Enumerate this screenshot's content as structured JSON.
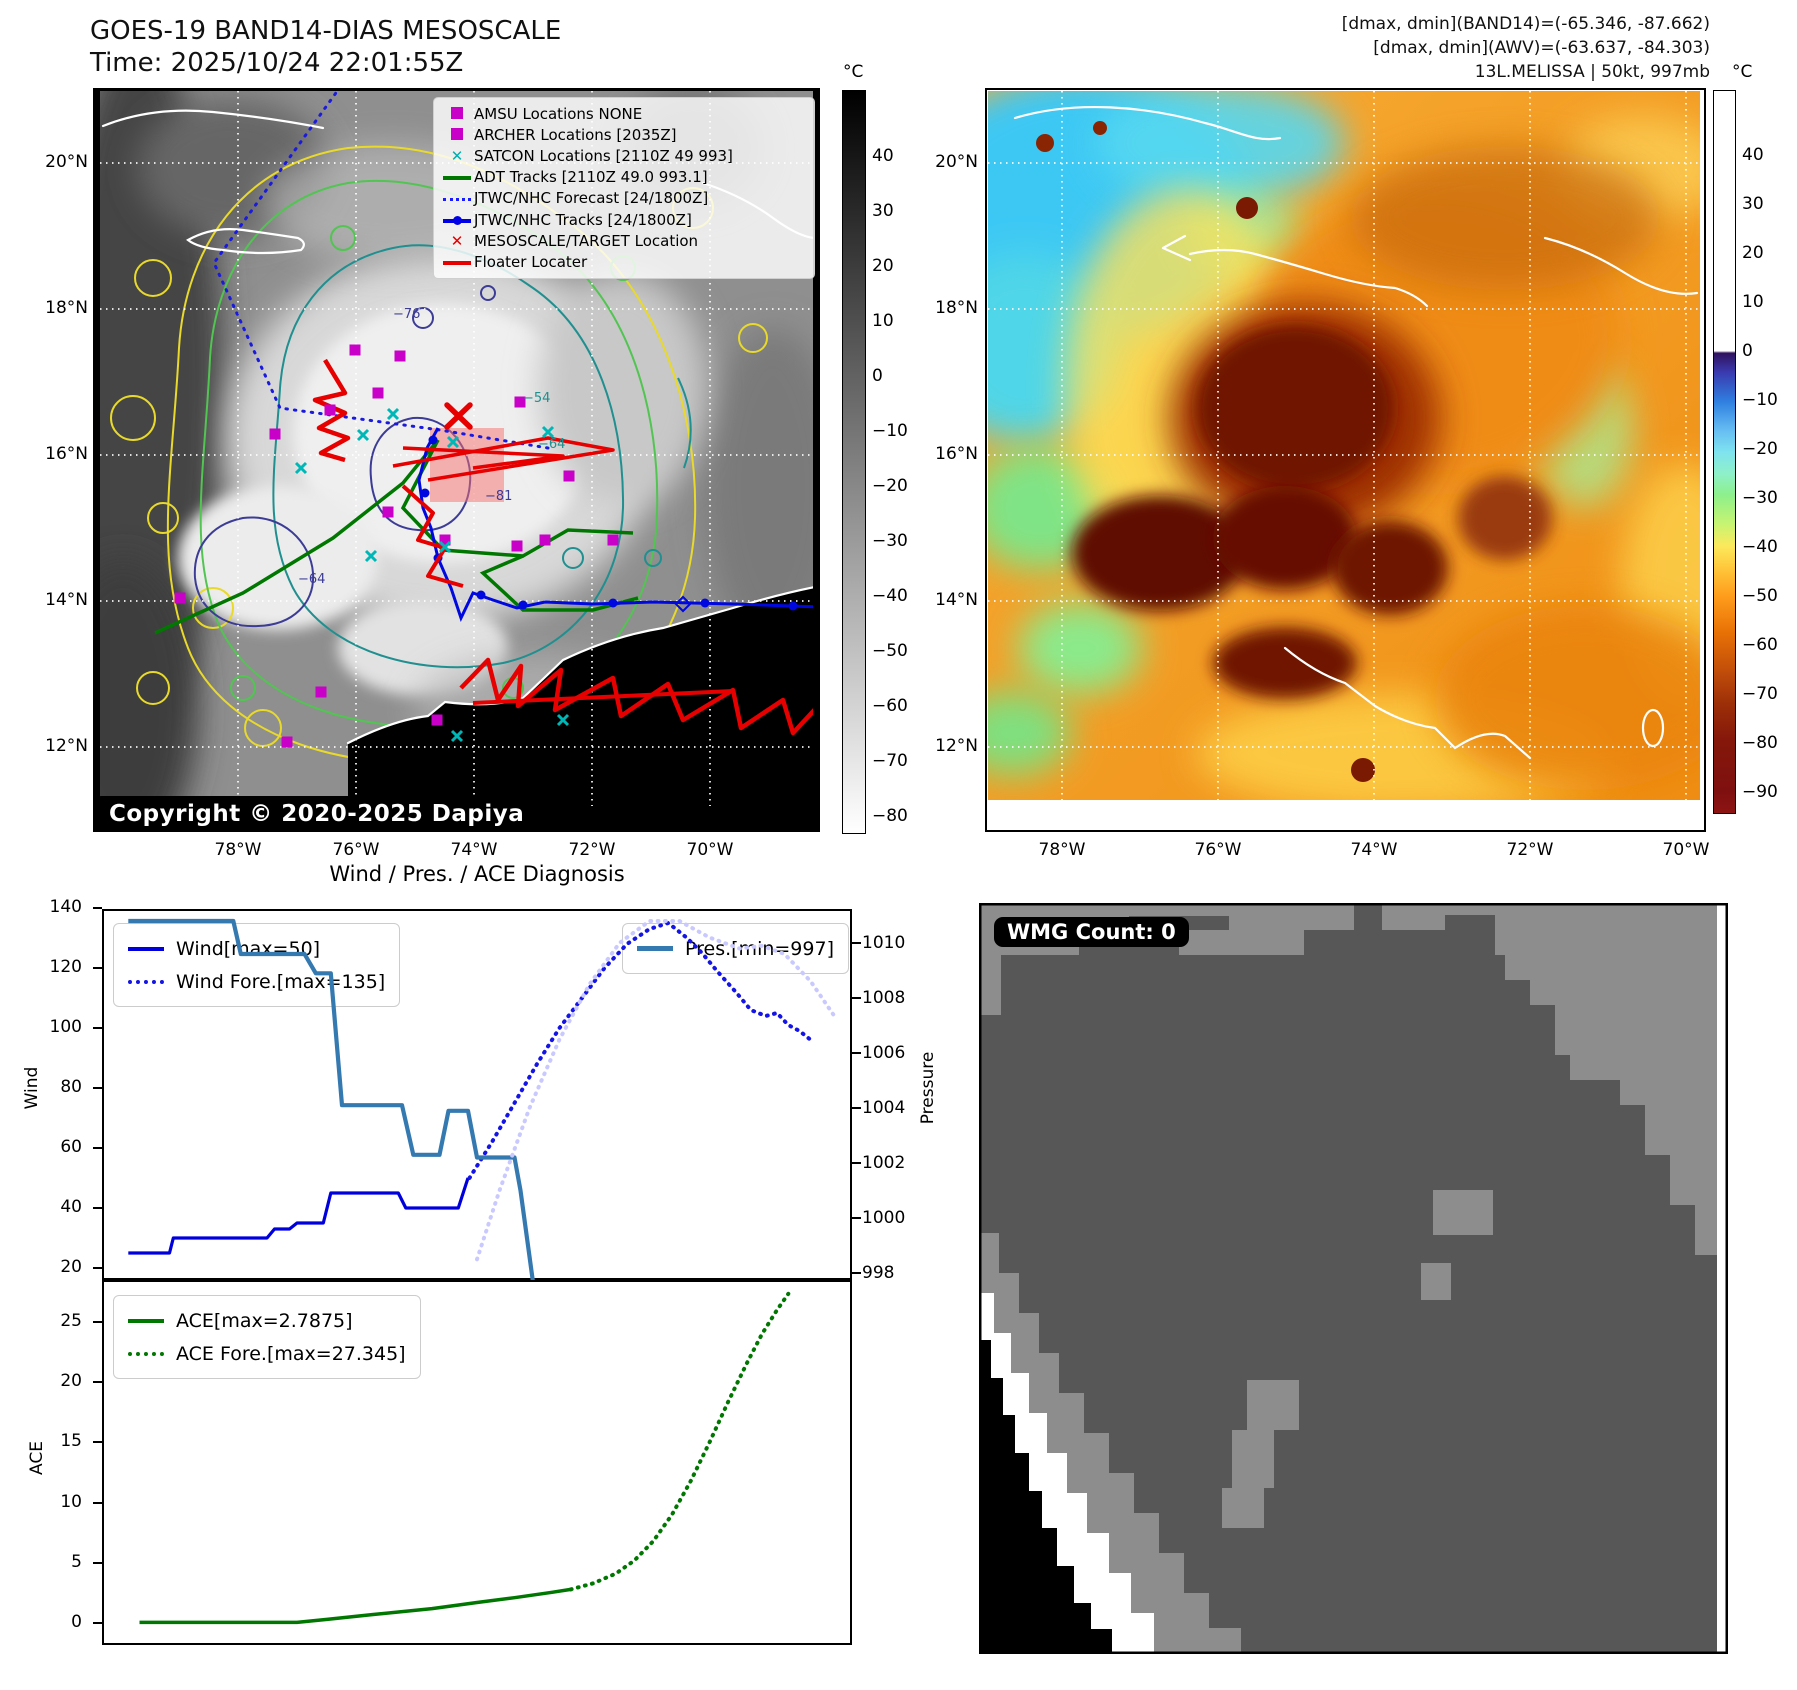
{
  "header": {
    "title_line1": "GOES-19 BAND14-DIAS MESOSCALE",
    "title_line2": "Time: 2025/10/24 22:01:55Z",
    "info_line1": "[dmax, dmin](BAND14)=(-65.346, -87.662)",
    "info_line2": "[dmax, dmin](AWV)=(-63.637, -84.303)",
    "info_line3": "13L.MELISSA | 50kt, 997mb"
  },
  "band14_map": {
    "copyright": "Copyright © 2020-2025 Dapiya",
    "lat_labels": [
      "20°N",
      "18°N",
      "16°N",
      "14°N",
      "12°N"
    ],
    "lon_labels": [
      "78°W",
      "76°W",
      "74°W",
      "72°W",
      "70°W"
    ],
    "colorbar": {
      "unit": "°C",
      "ticks": [
        "40",
        "30",
        "20",
        "10",
        "0",
        "−10",
        "−20",
        "−30",
        "−40",
        "−50",
        "−60",
        "−70",
        "−80"
      ]
    },
    "contour_labels": [
      "−76",
      "−81",
      "−64",
      "−54",
      "−64"
    ],
    "legend_items": [
      {
        "type": "square",
        "color": "#c800c8",
        "label": "AMSU Locations NONE"
      },
      {
        "type": "square",
        "color": "#c800c8",
        "label": "ARCHER Locations [2035Z]"
      },
      {
        "type": "x",
        "color": "#00b0b0",
        "label": "SATCON Locations [2110Z 49 993]"
      },
      {
        "type": "line",
        "color": "#007700",
        "label": "ADT Tracks [2110Z 49.0 993.1]"
      },
      {
        "type": "dotted",
        "color": "#1a1aff",
        "label": "JTWC/NHC Forecast [24/1800Z]"
      },
      {
        "type": "line-marker",
        "color": "#0000e6",
        "label": "JTWC/NHC Tracks [24/1800Z]"
      },
      {
        "type": "x",
        "color": "#e60000",
        "label": "MESOSCALE/TARGET Location"
      },
      {
        "type": "line",
        "color": "#e60000",
        "label": "Floater Locater"
      }
    ]
  },
  "awv_map": {
    "lat_labels": [
      "20°N",
      "18°N",
      "16°N",
      "14°N",
      "12°N"
    ],
    "lon_labels": [
      "78°W",
      "76°W",
      "74°W",
      "72°W",
      "70°W"
    ],
    "colorbar": {
      "unit": "°C",
      "ticks": [
        "40",
        "30",
        "20",
        "10",
        "0",
        "−10",
        "−20",
        "−30",
        "−40",
        "−50",
        "−60",
        "−70",
        "−80",
        "−90"
      ]
    }
  },
  "wmg": {
    "count_label": "WMG Count: 0",
    "colors": {
      "dark": "#575757",
      "light": "#8d8d8d",
      "black": "#000000",
      "white": "#ffffff"
    }
  },
  "chart_data": [
    {
      "type": "line",
      "title": "Wind / Pres. / ACE Diagnosis",
      "left_axis": {
        "label": "Wind",
        "tick_labels": [
          "140",
          "120",
          "100",
          "80",
          "60",
          "40",
          "20"
        ],
        "range": [
          20,
          140
        ]
      },
      "right_axis": {
        "label": "Pressure",
        "tick_labels": [
          "1010",
          "1008",
          "1006",
          "1004",
          "1002",
          "1000",
          "998"
        ],
        "range": [
          997,
          1011
        ]
      },
      "grid": false,
      "series": [
        {
          "name": "Wind[max=50]",
          "axis": "wind",
          "style": "solid",
          "color": "#0000dd",
          "width": 3.2,
          "points": [
            [
              0.035,
              25
            ],
            [
              0.09,
              25
            ],
            [
              0.095,
              30
            ],
            [
              0.22,
              30
            ],
            [
              0.23,
              33
            ],
            [
              0.25,
              33
            ],
            [
              0.26,
              35
            ],
            [
              0.295,
              35
            ],
            [
              0.305,
              45
            ],
            [
              0.395,
              45
            ],
            [
              0.405,
              40
            ],
            [
              0.475,
              40
            ],
            [
              0.488,
              50
            ]
          ]
        },
        {
          "name": "Wind Fore.[max=135]",
          "axis": "wind",
          "style": "dotted",
          "color": "#1414e6",
          "width": 4,
          "points": [
            [
              0.49,
              50
            ],
            [
              0.52,
              62
            ],
            [
              0.55,
              75
            ],
            [
              0.58,
              88
            ],
            [
              0.61,
              100
            ],
            [
              0.64,
              110
            ],
            [
              0.67,
              120
            ],
            [
              0.7,
              128
            ],
            [
              0.73,
              133
            ],
            [
              0.755,
              135
            ],
            [
              0.78,
              130
            ],
            [
              0.8,
              125
            ],
            [
              0.82,
              119
            ],
            [
              0.845,
              112
            ],
            [
              0.865,
              106
            ],
            [
              0.885,
              104
            ],
            [
              0.9,
              105
            ],
            [
              0.915,
              101
            ],
            [
              0.93,
              99
            ],
            [
              0.945,
              96
            ]
          ]
        },
        {
          "name": "Pres.[min=997]",
          "axis": "pressure",
          "style": "solid",
          "color": "#3579b1",
          "width": 4.2,
          "points": [
            [
              0.035,
              1010.8
            ],
            [
              0.175,
              1010.8
            ],
            [
              0.185,
              1009.6
            ],
            [
              0.27,
              1009.6
            ],
            [
              0.285,
              1008.9
            ],
            [
              0.305,
              1008.9
            ],
            [
              0.32,
              1004.1
            ],
            [
              0.4,
              1004.1
            ],
            [
              0.415,
              1002.3
            ],
            [
              0.45,
              1002.3
            ],
            [
              0.462,
              1003.9
            ],
            [
              0.488,
              1003.9
            ],
            [
              0.5,
              1002.2
            ],
            [
              0.55,
              1002.2
            ],
            [
              0.558,
              1001
            ],
            [
              0.578,
              997
            ]
          ]
        },
        {
          "name": "pres_forecast",
          "axis": "pressure",
          "style": "dotted",
          "color": "#c9c9ff",
          "width": 4,
          "points": [
            [
              0.5,
              998.5
            ],
            [
              0.53,
              1001
            ],
            [
              0.57,
              1004
            ],
            [
              0.61,
              1006.5
            ],
            [
              0.65,
              1008.5
            ],
            [
              0.69,
              1010
            ],
            [
              0.73,
              1010.8
            ],
            [
              0.77,
              1010.8
            ],
            [
              0.81,
              1010.2
            ],
            [
              0.85,
              1009.8
            ],
            [
              0.88,
              1009.9
            ],
            [
              0.91,
              1009.6
            ],
            [
              0.945,
              1008.6
            ],
            [
              0.975,
              1007.4
            ]
          ]
        }
      ]
    },
    {
      "type": "line",
      "left_axis": {
        "label": "ACE",
        "tick_labels": [
          "25",
          "20",
          "15",
          "10",
          "5",
          "0"
        ],
        "range": [
          0,
          28
        ]
      },
      "grid": false,
      "series": [
        {
          "name": "ACE[max=2.7875]",
          "axis": "ace",
          "style": "solid",
          "color": "#007700",
          "width": 3.5,
          "points": [
            [
              0.05,
              0.05
            ],
            [
              0.26,
              0.05
            ],
            [
              0.3,
              0.3
            ],
            [
              0.36,
              0.7
            ],
            [
              0.44,
              1.2
            ],
            [
              0.5,
              1.7
            ],
            [
              0.55,
              2.1
            ],
            [
              0.6,
              2.55
            ],
            [
              0.625,
              2.7875
            ]
          ]
        },
        {
          "name": "ACE Fore.[max=27.345]",
          "axis": "ace",
          "style": "dotted",
          "color": "#007700",
          "width": 4,
          "points": [
            [
              0.625,
              2.7875
            ],
            [
              0.655,
              3.3
            ],
            [
              0.685,
              4.1
            ],
            [
              0.71,
              5.2
            ],
            [
              0.735,
              6.8
            ],
            [
              0.76,
              9.0
            ],
            [
              0.785,
              11.8
            ],
            [
              0.81,
              15.0
            ],
            [
              0.835,
              18.4
            ],
            [
              0.86,
              21.6
            ],
            [
              0.88,
              24.0
            ],
            [
              0.9,
              26.0
            ],
            [
              0.915,
              27.345
            ]
          ]
        }
      ]
    }
  ]
}
